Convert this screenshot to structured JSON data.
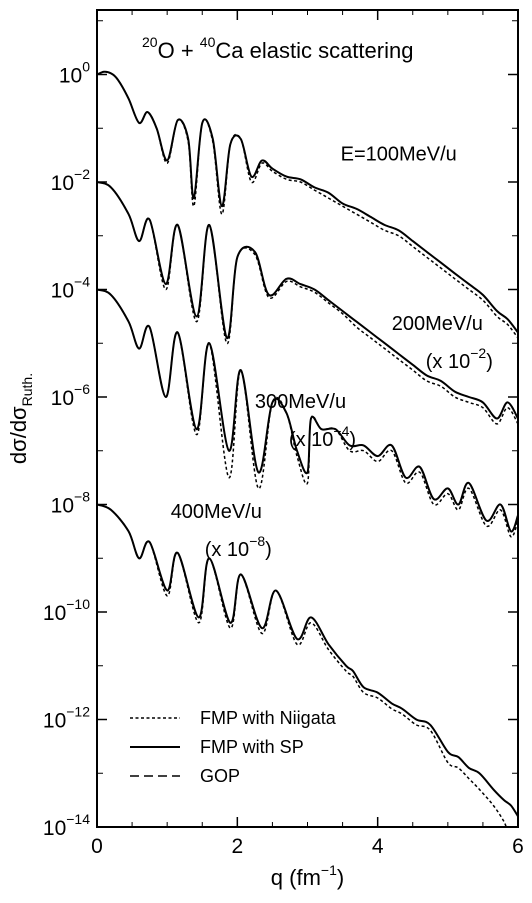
{
  "chart_data": {
    "type": "line",
    "title_parts": {
      "mass_a": "20",
      "elem_a": "O",
      "plus": " + ",
      "mass_b": "40",
      "elem_b": "Ca",
      "rest": " elastic scattering"
    },
    "xlabel": {
      "main": "q (fm",
      "sup": "−1",
      "close": ")"
    },
    "ylabel": {
      "main": "dσ/dσ",
      "sub": "Ruth."
    },
    "x_ticks": [
      "0",
      "2",
      "4",
      "6"
    ],
    "y_ticks": [
      {
        "base": "10",
        "exp": "0",
        "value": 0
      },
      {
        "base": "10",
        "exp": "−2",
        "value": -2
      },
      {
        "base": "10",
        "exp": "−4",
        "value": -4
      },
      {
        "base": "10",
        "exp": "−6",
        "value": -6
      },
      {
        "base": "10",
        "exp": "−8",
        "value": -8
      },
      {
        "base": "10",
        "exp": "−10",
        "value": -10
      },
      {
        "base": "10",
        "exp": "−12",
        "value": -12
      },
      {
        "base": "10",
        "exp": "−14",
        "value": -14
      }
    ],
    "xlim": [
      0,
      6
    ],
    "ylim_log10": [
      -14,
      1.2
    ],
    "yscale": "log",
    "grid": false,
    "legend_placement": "bottom-left",
    "legend": [
      {
        "label": "FMP with Niigata",
        "style": "dotted"
      },
      {
        "label": "FMP with SP",
        "style": "solid"
      },
      {
        "label": "GOP",
        "style": "dashed"
      }
    ],
    "annotations": [
      {
        "energy": "E=100MeV/u",
        "scale": null,
        "x": 4.3,
        "y_log10": -1.6
      },
      {
        "energy": "200MeV/u",
        "scale": {
          "prefix": "(x 10",
          "exp": "−2",
          "suffix": ")"
        },
        "x": 4.85,
        "y_log10": -4.75
      },
      {
        "energy": "300MeV/u",
        "scale": {
          "prefix": "(x 10",
          "exp": "−4",
          "suffix": ")"
        },
        "x": 2.9,
        "y_log10": -6.2
      },
      {
        "energy": "400MeV/u",
        "scale": {
          "prefix": "(x 10",
          "exp": "−8",
          "suffix": ")"
        },
        "x": 1.7,
        "y_log10": -8.25
      }
    ],
    "series": [
      {
        "energy": "100MeV/u",
        "x": [
          0,
          0.1,
          0.2,
          0.3,
          0.45,
          0.6,
          0.72,
          0.85,
          1.0,
          1.15,
          1.3,
          1.38,
          1.5,
          1.65,
          1.78,
          1.9,
          2.05,
          2.2,
          2.35,
          2.5,
          2.7,
          2.9,
          3.1,
          3.3,
          3.5,
          3.7,
          3.9,
          4.1,
          4.3,
          4.5,
          4.7,
          4.9,
          5.1,
          5.3,
          5.5,
          5.7,
          5.85,
          6.0
        ],
        "solid": [
          0.0,
          0.05,
          0.02,
          -0.1,
          -0.45,
          -0.9,
          -0.7,
          -1.0,
          -1.6,
          -0.85,
          -1.2,
          -2.3,
          -0.9,
          -1.2,
          -2.45,
          -1.3,
          -1.2,
          -1.9,
          -1.6,
          -1.75,
          -1.9,
          -1.95,
          -2.1,
          -2.2,
          -2.4,
          -2.5,
          -2.65,
          -2.8,
          -2.9,
          -3.1,
          -3.3,
          -3.5,
          -3.7,
          -3.9,
          -4.1,
          -4.4,
          -4.55,
          -4.8
        ],
        "dotted": [
          0.0,
          0.05,
          0.02,
          -0.1,
          -0.45,
          -0.9,
          -0.7,
          -1.0,
          -1.65,
          -0.85,
          -1.25,
          -2.45,
          -0.9,
          -1.25,
          -2.6,
          -1.3,
          -1.2,
          -2.0,
          -1.65,
          -1.8,
          -1.95,
          -2.0,
          -2.15,
          -2.3,
          -2.45,
          -2.6,
          -2.75,
          -2.9,
          -3.0,
          -3.2,
          -3.4,
          -3.6,
          -3.8,
          -4.0,
          -4.2,
          -4.5,
          -4.65,
          -4.9
        ]
      },
      {
        "energy": "200MeV/u",
        "x": [
          0,
          0.2,
          0.45,
          0.6,
          0.75,
          0.98,
          1.15,
          1.42,
          1.6,
          1.85,
          2.0,
          2.25,
          2.45,
          2.7,
          2.9,
          3.1,
          3.3,
          3.5,
          3.7,
          3.9,
          4.1,
          4.3,
          4.5,
          4.7,
          4.9,
          5.1,
          5.3,
          5.5,
          5.7,
          5.85,
          6.0
        ],
        "solid": [
          -2.0,
          -2.1,
          -2.6,
          -3.1,
          -2.7,
          -3.9,
          -2.8,
          -4.5,
          -2.8,
          -4.9,
          -3.4,
          -3.3,
          -4.1,
          -3.8,
          -3.9,
          -4.0,
          -4.2,
          -4.4,
          -4.6,
          -4.8,
          -5.0,
          -5.2,
          -5.4,
          -5.6,
          -5.7,
          -5.9,
          -6.0,
          -6.1,
          -6.4,
          -6.1,
          -6.4
        ],
        "dotted": [
          -2.0,
          -2.1,
          -2.6,
          -3.1,
          -2.7,
          -4.0,
          -2.8,
          -4.6,
          -2.8,
          -5.0,
          -3.4,
          -3.35,
          -4.15,
          -3.85,
          -3.95,
          -4.05,
          -4.25,
          -4.45,
          -4.7,
          -4.9,
          -5.1,
          -5.3,
          -5.5,
          -5.7,
          -5.8,
          -6.0,
          -6.1,
          -6.2,
          -6.5,
          -6.2,
          -6.5
        ]
      },
      {
        "energy": "300MeV/u",
        "x": [
          0,
          0.2,
          0.45,
          0.6,
          0.75,
          0.98,
          1.15,
          1.42,
          1.6,
          1.88,
          2.05,
          2.3,
          2.5,
          2.7,
          2.85,
          3.0,
          3.05,
          3.2,
          3.4,
          3.6,
          3.8,
          4.0,
          4.2,
          4.4,
          4.6,
          4.8,
          5.0,
          5.15,
          5.3,
          5.55,
          5.75,
          5.9,
          6.0
        ],
        "solid": [
          -4.0,
          -4.1,
          -4.6,
          -5.1,
          -4.7,
          -6.0,
          -4.8,
          -6.6,
          -5.0,
          -7.0,
          -5.5,
          -7.4,
          -6.1,
          -6.3,
          -7.0,
          -7.4,
          -6.4,
          -6.6,
          -6.6,
          -6.9,
          -6.9,
          -7.1,
          -6.9,
          -7.5,
          -7.3,
          -7.9,
          -7.7,
          -8.0,
          -7.6,
          -8.3,
          -8.0,
          -8.5,
          -8.2
        ],
        "dotted": [
          -4.0,
          -4.1,
          -4.6,
          -5.1,
          -4.7,
          -6.0,
          -4.8,
          -6.7,
          -5.0,
          -7.5,
          -5.5,
          -7.7,
          -6.1,
          -6.3,
          -7.1,
          -7.6,
          -6.4,
          -6.6,
          -6.6,
          -7.0,
          -7.0,
          -7.2,
          -7.0,
          -7.6,
          -7.4,
          -8.0,
          -7.8,
          -8.1,
          -7.7,
          -8.4,
          -8.1,
          -8.6,
          -8.3
        ]
      },
      {
        "energy": "400MeV/u",
        "x": [
          0,
          0.2,
          0.45,
          0.6,
          0.75,
          1.0,
          1.15,
          1.45,
          1.6,
          1.9,
          2.05,
          2.35,
          2.55,
          2.85,
          3.05,
          3.3,
          3.55,
          3.65,
          3.8,
          4.0,
          4.2,
          4.35,
          4.55,
          4.75,
          5.0,
          5.15,
          5.3,
          5.45,
          5.65,
          5.8,
          5.9,
          6.0
        ],
        "solid": [
          -8.0,
          -8.1,
          -8.5,
          -9.0,
          -8.7,
          -9.6,
          -8.9,
          -10.1,
          -9.0,
          -10.2,
          -9.3,
          -10.3,
          -9.6,
          -10.5,
          -10.1,
          -10.6,
          -11.0,
          -11.1,
          -11.4,
          -11.5,
          -11.7,
          -11.8,
          -12.0,
          -12.1,
          -12.6,
          -12.7,
          -12.9,
          -13.0,
          -13.3,
          -13.5,
          -13.6,
          -13.8
        ],
        "dotted": [
          -8.0,
          -8.1,
          -8.5,
          -9.0,
          -8.7,
          -9.7,
          -8.9,
          -10.2,
          -9.0,
          -10.3,
          -9.3,
          -10.4,
          -9.6,
          -10.6,
          -10.2,
          -10.7,
          -11.1,
          -11.2,
          -11.5,
          -11.6,
          -11.8,
          -11.9,
          -12.1,
          -12.2,
          -12.8,
          -12.9,
          -13.1,
          -13.3,
          -13.6,
          -13.9,
          -14.2,
          -14.0
        ]
      }
    ]
  }
}
